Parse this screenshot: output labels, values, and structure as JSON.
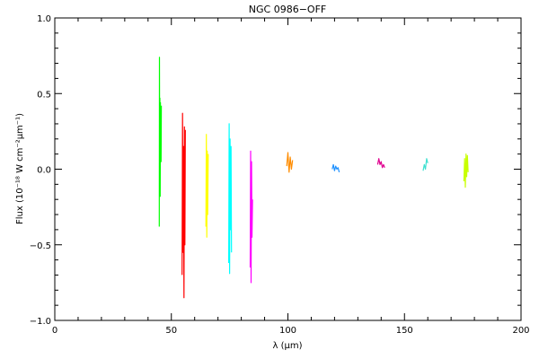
{
  "chart_data": {
    "type": "line",
    "title": "NGC 0986−OFF",
    "xlabel": "λ (μm)",
    "ylabel": "Flux (10⁻¹⁸ W cm⁻²μm⁻¹)",
    "xlim": [
      0,
      200
    ],
    "ylim": [
      -1.0,
      1.0
    ],
    "x_ticks": [
      0,
      50,
      100,
      150,
      200
    ],
    "x_tick_labels": [
      "0",
      "50",
      "100",
      "150",
      "200"
    ],
    "y_ticks": [
      -1.0,
      -0.5,
      0.0,
      0.5,
      1.0
    ],
    "y_tick_labels": [
      "−1.0",
      "−0.5",
      "0.0",
      "0.5",
      "1.0"
    ],
    "grid": false,
    "series": [
      {
        "color": "#00ff00",
        "x": [
          44.8,
          44.9,
          45.0,
          45.1,
          45.2,
          45.3,
          45.4,
          45.5,
          45.6,
          45.7
        ],
        "y": [
          -0.38,
          0.74,
          -0.1,
          0.47,
          -0.18,
          0.44,
          0.1,
          0.3,
          0.05,
          0.42
        ]
      },
      {
        "color": "#ff0000",
        "x": [
          54.6,
          54.8,
          55.0,
          55.2,
          55.4,
          55.6,
          55.8,
          56.0
        ],
        "y": [
          -0.7,
          0.37,
          -0.55,
          0.15,
          -0.85,
          0.28,
          -0.5,
          0.26
        ]
      },
      {
        "color": "#ffff00",
        "x": [
          64.8,
          65.0,
          65.2,
          65.4,
          65.6,
          65.8
        ],
        "y": [
          -0.38,
          0.23,
          -0.45,
          0.12,
          -0.3,
          0.1
        ]
      },
      {
        "color": "#00ffff",
        "x": [
          74.6,
          74.8,
          75.0,
          75.2,
          75.4,
          75.6,
          75.8
        ],
        "y": [
          -0.62,
          0.3,
          -0.69,
          0.2,
          -0.4,
          0.15,
          -0.55
        ]
      },
      {
        "color": "#ff00ff",
        "x": [
          83.8,
          84.0,
          84.2,
          84.4,
          84.6,
          84.8
        ],
        "y": [
          -0.65,
          0.12,
          -0.75,
          0.05,
          -0.45,
          -0.2
        ]
      },
      {
        "color": "#ff8c00",
        "x": [
          99.5,
          100.0,
          100.5,
          101.0,
          101.5,
          102.0
        ],
        "y": [
          0.02,
          0.11,
          -0.02,
          0.08,
          0.0,
          0.06
        ]
      },
      {
        "color": "#1e90ff",
        "x": [
          119.0,
          119.5,
          120.0,
          120.5,
          121.0,
          121.5,
          122.0
        ],
        "y": [
          0.0,
          0.03,
          -0.01,
          0.02,
          0.0,
          0.01,
          -0.02
        ]
      },
      {
        "color": "#e0008f",
        "x": [
          138.5,
          139.0,
          139.5,
          140.0,
          140.5,
          141.0,
          141.5
        ],
        "y": [
          0.03,
          0.07,
          0.03,
          0.05,
          0.01,
          0.03,
          0.01
        ]
      },
      {
        "color": "#40e0d0",
        "x": [
          158.0,
          158.5,
          159.0,
          159.5,
          160.0
        ],
        "y": [
          -0.01,
          0.03,
          0.0,
          0.07,
          0.04
        ]
      },
      {
        "color": "#c8ff00",
        "x": [
          175.5,
          175.8,
          176.1,
          176.4,
          176.7,
          177.0,
          177.3
        ],
        "y": [
          -0.08,
          0.07,
          -0.12,
          0.1,
          -0.05,
          0.09,
          -0.02
        ]
      }
    ]
  }
}
